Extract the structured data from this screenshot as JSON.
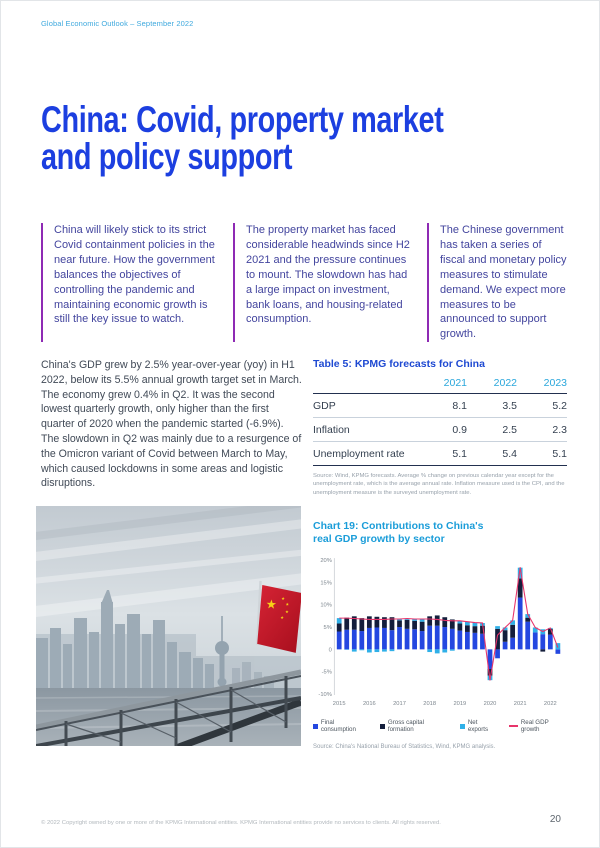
{
  "header": {
    "text": "Global Economic Outlook – September 2022"
  },
  "title": {
    "line1": "China: Covid, property market",
    "line2": "and policy support"
  },
  "intro_columns": [
    {
      "text": "China will likely stick to its strict Covid containment policies in the near future. How the government balances the objectives of controlling the pandemic and maintaining economic growth is still the key issue to watch."
    },
    {
      "text": "The property market has faced considerable headwinds since H2 2021 and the pressure continues to mount. The slowdown has had a large impact on investment, bank loans, and housing-related consumption."
    },
    {
      "text": "The Chinese government has taken a series of fiscal and monetary policy measures to stimulate demand. We expect more measures to be announced to support growth."
    }
  ],
  "body_paragraph": "China's GDP grew by 2.5% year-over-year (yoy) in H1 2022, below its 5.5% annual growth target set in March. The economy grew 0.4% in Q2. It was the second lowest quarterly growth, only higher than the first quarter of 2020 when the pandemic started (-6.9%). The slowdown in Q2 was mainly due to a resurgence of the Omicron variant of Covid between March to May, which caused lockdowns in some areas and logistic disruptions.",
  "table": {
    "title": "Table 5: KPMG forecasts for China",
    "columns": [
      "2021",
      "2022",
      "2023"
    ],
    "rows": [
      {
        "label": "GDP",
        "values": [
          "8.1",
          "3.5",
          "5.2"
        ]
      },
      {
        "label": "Inflation",
        "values": [
          "0.9",
          "2.5",
          "2.3"
        ]
      },
      {
        "label": "Unemployment rate",
        "values": [
          "5.1",
          "5.4",
          "5.1"
        ]
      }
    ],
    "source": "Source: Wind, KPMG forecasts. Average % change on previous calendar year except for the unemployment rate, which is the average annual rate. Inflation measure used is the CPI, and the unemployment measure is the surveyed unemployment rate."
  },
  "chart": {
    "title_line1": "Chart 19: Contributions to China's",
    "title_line2": "real GDP growth by sector",
    "source": "Source: China's National Bureau of Statistics, Wind, KPMG analysis."
  },
  "chart_data": {
    "type": "bar",
    "stacked": true,
    "x": [
      "2015Q1",
      "2015Q2",
      "2015Q3",
      "2015Q4",
      "2016Q1",
      "2016Q2",
      "2016Q3",
      "2016Q4",
      "2017Q1",
      "2017Q2",
      "2017Q3",
      "2017Q4",
      "2018Q1",
      "2018Q2",
      "2018Q3",
      "2018Q4",
      "2019Q1",
      "2019Q2",
      "2019Q3",
      "2019Q4",
      "2020Q1",
      "2020Q2",
      "2020Q3",
      "2020Q4",
      "2021Q1",
      "2021Q2",
      "2021Q3",
      "2021Q4",
      "2022Q1",
      "2022Q2"
    ],
    "series": [
      {
        "name": "Final consumption",
        "color": "#2447e0",
        "values": [
          4.0,
          4.4,
          4.4,
          4.1,
          4.8,
          4.9,
          4.8,
          4.3,
          5.0,
          4.6,
          4.5,
          4.1,
          5.3,
          5.3,
          5.0,
          4.6,
          4.2,
          3.9,
          3.7,
          3.5,
          -4.4,
          -2.0,
          1.7,
          2.6,
          11.6,
          6.2,
          3.8,
          3.4,
          3.3,
          -1.0
        ]
      },
      {
        "name": "Gross capital formation",
        "color": "#141e3c",
        "values": [
          1.8,
          2.7,
          3.0,
          2.9,
          2.6,
          2.4,
          2.4,
          2.9,
          1.5,
          2.0,
          1.9,
          2.1,
          2.1,
          2.3,
          2.2,
          2.1,
          1.6,
          1.5,
          1.5,
          1.8,
          -1.5,
          4.6,
          2.6,
          2.9,
          4.3,
          0.9,
          0.0,
          -0.5,
          1.3,
          0.0
        ]
      },
      {
        "name": "Net exports",
        "color": "#2fb0e8",
        "values": [
          1.2,
          -0.1,
          -0.5,
          -0.2,
          -0.7,
          -0.6,
          -0.5,
          -0.4,
          0.3,
          0.3,
          0.4,
          0.6,
          -0.6,
          -0.9,
          -0.7,
          -0.3,
          0.6,
          0.8,
          0.8,
          0.6,
          -1.0,
          0.6,
          0.6,
          1.0,
          2.4,
          0.8,
          1.1,
          1.1,
          0.2,
          1.4
        ]
      }
    ],
    "line_series": {
      "name": "Real GDP growth",
      "color": "#e8356b",
      "values": [
        7.0,
        7.0,
        6.9,
        6.8,
        6.7,
        6.7,
        6.7,
        6.8,
        6.8,
        6.9,
        6.8,
        6.8,
        6.8,
        6.7,
        6.5,
        6.4,
        6.4,
        6.2,
        6.0,
        5.9,
        -6.9,
        3.2,
        4.9,
        6.5,
        18.3,
        7.9,
        4.9,
        4.0,
        4.8,
        0.4
      ]
    },
    "ylim": [
      -10,
      20
    ],
    "ytick_values": [
      20,
      15,
      10,
      5,
      0,
      -5,
      -10
    ],
    "yticks": [
      "20%",
      "15%",
      "10%",
      "5%",
      "0",
      "-5%",
      "-10%"
    ],
    "xticks": [
      "2015",
      "2016",
      "2017",
      "2018",
      "2019",
      "2020",
      "2021",
      "2022"
    ],
    "grid": false,
    "legend_position": "bottom"
  },
  "colors": {
    "title_blue": "#1c3fe0",
    "light_blue": "#1b9dd9",
    "purple_rule": "#8e2ab4",
    "flag_red": "#c8182a"
  },
  "footer": {
    "text": "© 2022 Copyright owned by one or more of the KPMG International entities. KPMG International entities provide no services to clients. All rights reserved.",
    "page_number": "20"
  }
}
